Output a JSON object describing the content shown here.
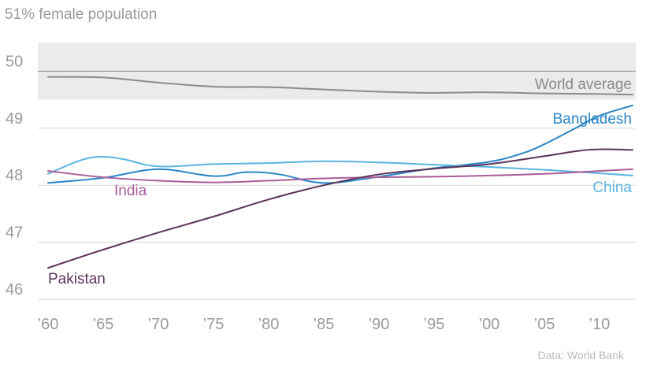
{
  "chart_data": {
    "type": "line",
    "title": "51% female population",
    "source": "Data: World Bank",
    "xlabel": "",
    "ylabel": "",
    "xlim": [
      1960,
      2013
    ],
    "ylim": [
      46,
      51
    ],
    "yticks": [
      46,
      47,
      48,
      49,
      50
    ],
    "xticks": [
      1960,
      1965,
      1970,
      1975,
      1980,
      1985,
      1990,
      1995,
      2000,
      2005,
      2010
    ],
    "xtick_labels": [
      "’60",
      "’65",
      "’70",
      "’75",
      "’80",
      "’85",
      "’90",
      "’95",
      "’00",
      "’05",
      "’10"
    ],
    "grid": true,
    "reference_band": [
      49.5,
      50.5
    ],
    "reference_line": 50,
    "series": [
      {
        "name": "World average",
        "color": "#8a8a8a",
        "label_position": "above-end",
        "x": [
          1960,
          1965,
          1970,
          1975,
          1980,
          1985,
          1990,
          1995,
          2000,
          2005,
          2010,
          2013
        ],
        "values": [
          49.9,
          49.89,
          49.8,
          49.73,
          49.72,
          49.68,
          49.64,
          49.62,
          49.63,
          49.61,
          49.6,
          49.59
        ]
      },
      {
        "name": "Bangladesh",
        "color": "#2a86c6",
        "label_position": "above-end",
        "x": [
          1960,
          1965,
          1970,
          1975,
          1978,
          1981,
          1985,
          1990,
          1995,
          2000,
          2003,
          2005,
          2008,
          2010,
          2013
        ],
        "values": [
          48.04,
          48.13,
          48.28,
          48.16,
          48.23,
          48.19,
          48.04,
          48.15,
          48.3,
          48.41,
          48.56,
          48.72,
          49.02,
          49.22,
          49.4
        ]
      },
      {
        "name": "China",
        "color": "#5ab4e0",
        "label_position": "right-end",
        "x": [
          1960,
          1963,
          1965,
          1967,
          1970,
          1975,
          1980,
          1985,
          1990,
          1995,
          2000,
          2005,
          2010,
          2013
        ],
        "values": [
          48.2,
          48.44,
          48.5,
          48.45,
          48.33,
          48.37,
          48.39,
          48.42,
          48.4,
          48.36,
          48.32,
          48.27,
          48.21,
          48.17
        ]
      },
      {
        "name": "India",
        "color": "#a95d98",
        "label_position": "below-left",
        "x": [
          1960,
          1965,
          1970,
          1975,
          1980,
          1985,
          1990,
          1995,
          2000,
          2005,
          2010,
          2013
        ],
        "values": [
          48.25,
          48.14,
          48.08,
          48.05,
          48.08,
          48.12,
          48.14,
          48.15,
          48.17,
          48.2,
          48.25,
          48.28
        ]
      },
      {
        "name": "Pakistan",
        "color": "#5c3358",
        "label_position": "below-start",
        "x": [
          1960,
          1965,
          1970,
          1975,
          1980,
          1985,
          1990,
          1995,
          2000,
          2005,
          2008,
          2010,
          2013
        ],
        "values": [
          46.55,
          46.87,
          47.17,
          47.45,
          47.75,
          48.0,
          48.19,
          48.29,
          48.37,
          48.51,
          48.6,
          48.63,
          48.62
        ]
      }
    ]
  }
}
